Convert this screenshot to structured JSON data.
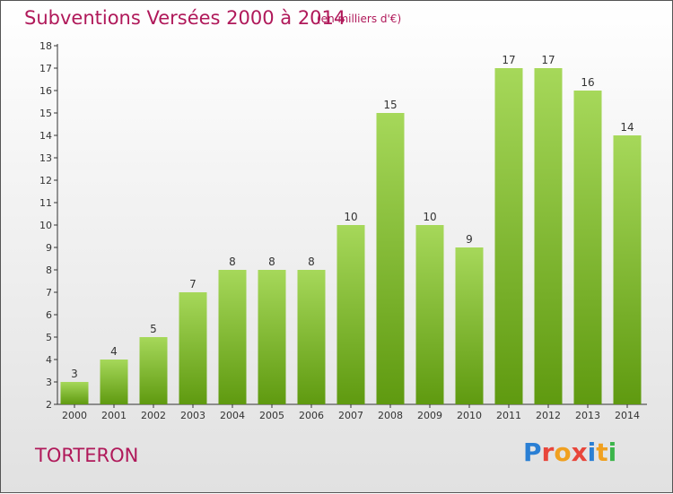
{
  "header": {
    "title": "Subventions Versées 2000 à 2014",
    "subtitle": "(en milliers d'€)"
  },
  "footer": {
    "commune": "TORTERON",
    "logo_letters": [
      "P",
      "r",
      "o",
      "x",
      "i",
      "t",
      "i"
    ],
    "logo_colors": [
      "#2a7fd4",
      "#e8463b",
      "#f0a020",
      "#e8463b",
      "#2a7fd4",
      "#f0a020",
      "#3bb54a"
    ]
  },
  "colors": {
    "title": "#b0195a",
    "bar_light": "#a6d85a",
    "bar_dark": "#5f9a10",
    "axis": "#333333"
  },
  "chart_data": {
    "type": "bar",
    "title": "Subventions Versées 2000 à 2014",
    "categories": [
      "2000",
      "2001",
      "2002",
      "2003",
      "2004",
      "2005",
      "2006",
      "2007",
      "2008",
      "2009",
      "2010",
      "2011",
      "2012",
      "2013",
      "2014"
    ],
    "values": [
      3,
      4,
      5,
      7,
      8,
      8,
      8,
      10,
      15,
      10,
      9,
      17,
      17,
      16,
      14
    ],
    "ylim": [
      2,
      18
    ],
    "yticks": [
      2,
      3,
      4,
      5,
      6,
      7,
      8,
      9,
      10,
      11,
      12,
      13,
      14,
      15,
      16,
      17,
      18
    ],
    "xlabel": "",
    "ylabel": "",
    "grid": false,
    "data_labels": true
  }
}
